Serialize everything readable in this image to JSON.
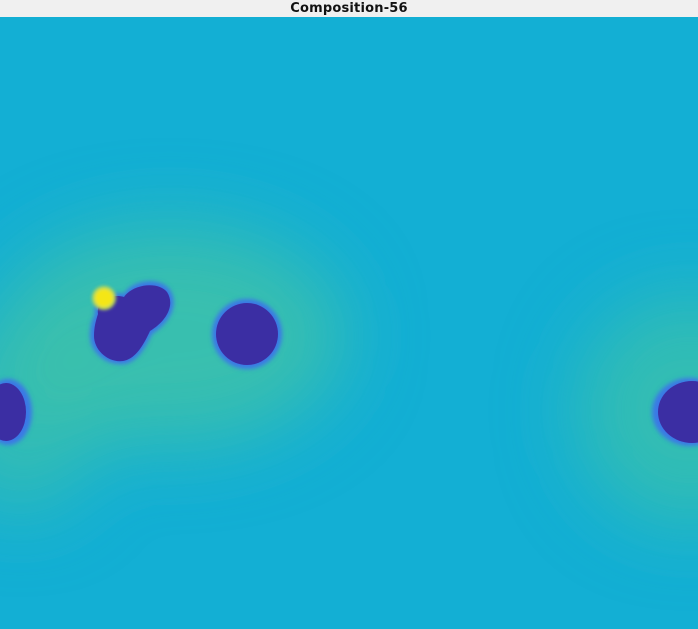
{
  "window": {
    "title": "Composition-56"
  },
  "colors": {
    "titlebar_bg": "#f0f0f0",
    "background": "#13afd4",
    "halo_inner": "#3cbfb0",
    "halo_outer": "#13afd4",
    "blob": "#3b2ea3",
    "blob_rim": "#3a6fe0",
    "spot": "#f2e410"
  }
}
